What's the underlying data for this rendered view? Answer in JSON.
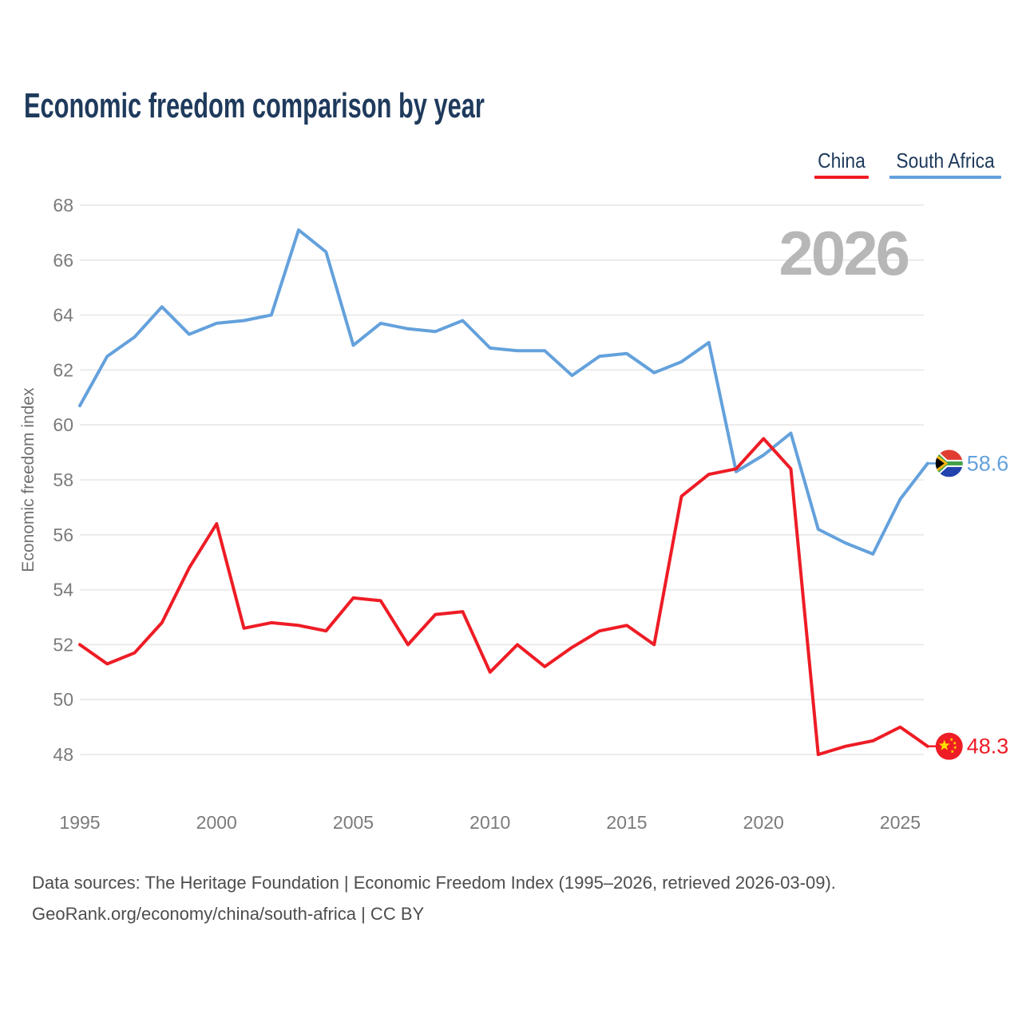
{
  "title": "Economic freedom comparison by year",
  "watermark": "2026",
  "y_axis_title": "Economic freedom index",
  "legend": [
    {
      "label": "China",
      "color": "#ee1c25"
    },
    {
      "label": "South Africa",
      "color": "#64a1dc"
    }
  ],
  "footer": {
    "line1": "Data sources: The Heritage Foundation | Economic Freedom Index (1995–2026, retrieved 2026-03-09).",
    "line2": "GeoRank.org/economy/china/south-africa | CC BY"
  },
  "chart_data": {
    "type": "line",
    "title": "Economic freedom comparison by year",
    "ylabel": "Economic freedom index",
    "ylim": [
      48,
      68
    ],
    "y_ticks": [
      48,
      50,
      52,
      54,
      56,
      58,
      60,
      62,
      64,
      66,
      68
    ],
    "x_ticks": [
      1995,
      2000,
      2005,
      2010,
      2015,
      2020,
      2025
    ],
    "grid": "horizontal",
    "legend_position": "top-right",
    "years": [
      1995,
      1996,
      1997,
      1998,
      1999,
      2000,
      2001,
      2002,
      2003,
      2004,
      2005,
      2006,
      2007,
      2008,
      2009,
      2010,
      2011,
      2012,
      2013,
      2014,
      2015,
      2016,
      2017,
      2018,
      2019,
      2020,
      2021,
      2022,
      2023,
      2024,
      2025,
      2026
    ],
    "series": [
      {
        "name": "South Africa",
        "color": "#64a1dc",
        "flag": "south-africa-flag-icon",
        "end_label": "58.6",
        "values": [
          60.7,
          62.5,
          63.2,
          64.3,
          63.3,
          63.7,
          63.8,
          64.0,
          67.1,
          66.3,
          62.9,
          63.7,
          63.5,
          63.4,
          63.8,
          62.8,
          62.7,
          62.7,
          61.8,
          62.5,
          62.6,
          61.9,
          62.3,
          63.0,
          58.3,
          58.9,
          59.7,
          56.2,
          55.7,
          55.3,
          57.3,
          58.6
        ]
      },
      {
        "name": "China",
        "color": "#ee1c25",
        "flag": "china-flag-icon",
        "end_label": "48.3",
        "values": [
          52.0,
          51.3,
          51.7,
          52.8,
          54.8,
          56.4,
          52.6,
          52.8,
          52.7,
          52.5,
          53.7,
          53.6,
          52.0,
          53.1,
          53.2,
          51.0,
          52.0,
          51.2,
          51.9,
          52.5,
          52.7,
          52.0,
          57.4,
          58.2,
          58.4,
          59.5,
          58.4,
          48.0,
          48.3,
          48.5,
          49.0,
          48.3
        ]
      }
    ]
  }
}
